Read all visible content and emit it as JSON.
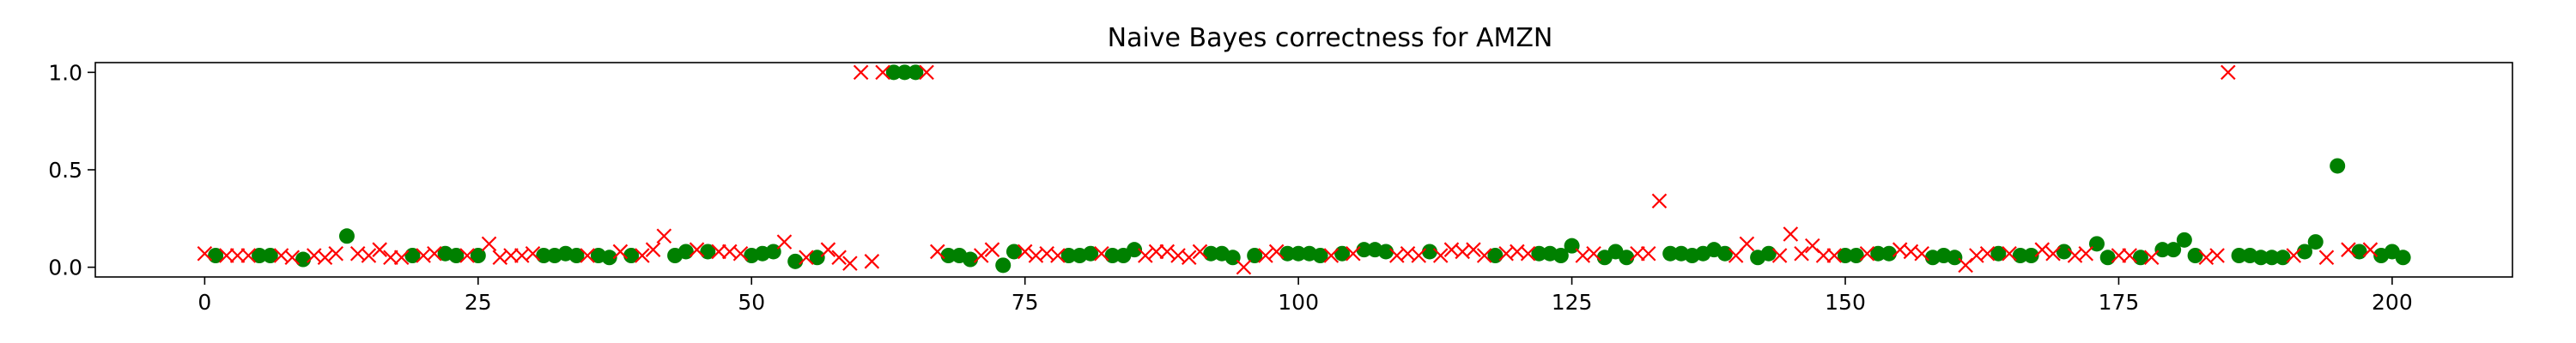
{
  "chart_data": {
    "type": "scatter",
    "title": "Naive Bayes correctness for AMZN",
    "xlabel": "",
    "ylabel": "",
    "xlim": [
      -10,
      211
    ],
    "ylim": [
      -0.05,
      1.05
    ],
    "xticks": [
      0,
      25,
      50,
      75,
      100,
      125,
      150,
      175,
      200
    ],
    "yticks": [
      0.0,
      0.5,
      1.0
    ],
    "ytick_labels": [
      "0.0",
      "0.5",
      "1.0"
    ],
    "grid": false,
    "legend": "none",
    "series": [
      {
        "marker": "circle",
        "color": "#008000",
        "points": [
          [
            1,
            0.06
          ],
          [
            5,
            0.06
          ],
          [
            6,
            0.06
          ],
          [
            9,
            0.04
          ],
          [
            13,
            0.16
          ],
          [
            19,
            0.06
          ],
          [
            22,
            0.07
          ],
          [
            23,
            0.06
          ],
          [
            25,
            0.06
          ],
          [
            31,
            0.06
          ],
          [
            32,
            0.06
          ],
          [
            33,
            0.07
          ],
          [
            34,
            0.06
          ],
          [
            36,
            0.06
          ],
          [
            37,
            0.05
          ],
          [
            39,
            0.06
          ],
          [
            43,
            0.06
          ],
          [
            44,
            0.08
          ],
          [
            46,
            0.08
          ],
          [
            50,
            0.06
          ],
          [
            51,
            0.07
          ],
          [
            52,
            0.08
          ],
          [
            54,
            0.03
          ],
          [
            56,
            0.05
          ],
          [
            63,
            1.0
          ],
          [
            64,
            1.0
          ],
          [
            65,
            1.0
          ],
          [
            68,
            0.06
          ],
          [
            69,
            0.06
          ],
          [
            70,
            0.04
          ],
          [
            73,
            0.01
          ],
          [
            74,
            0.08
          ],
          [
            79,
            0.06
          ],
          [
            80,
            0.06
          ],
          [
            81,
            0.07
          ],
          [
            83,
            0.06
          ],
          [
            84,
            0.06
          ],
          [
            85,
            0.09
          ],
          [
            92,
            0.07
          ],
          [
            93,
            0.07
          ],
          [
            94,
            0.05
          ],
          [
            96,
            0.06
          ],
          [
            99,
            0.07
          ],
          [
            100,
            0.07
          ],
          [
            101,
            0.07
          ],
          [
            102,
            0.06
          ],
          [
            104,
            0.07
          ],
          [
            106,
            0.09
          ],
          [
            107,
            0.09
          ],
          [
            108,
            0.08
          ],
          [
            112,
            0.08
          ],
          [
            118,
            0.06
          ],
          [
            122,
            0.07
          ],
          [
            123,
            0.07
          ],
          [
            124,
            0.06
          ],
          [
            125,
            0.11
          ],
          [
            128,
            0.05
          ],
          [
            129,
            0.08
          ],
          [
            130,
            0.05
          ],
          [
            134,
            0.07
          ],
          [
            135,
            0.07
          ],
          [
            136,
            0.06
          ],
          [
            137,
            0.07
          ],
          [
            138,
            0.09
          ],
          [
            139,
            0.07
          ],
          [
            142,
            0.05
          ],
          [
            143,
            0.07
          ],
          [
            150,
            0.06
          ],
          [
            151,
            0.06
          ],
          [
            153,
            0.07
          ],
          [
            154,
            0.07
          ],
          [
            158,
            0.05
          ],
          [
            159,
            0.06
          ],
          [
            160,
            0.05
          ],
          [
            164,
            0.07
          ],
          [
            166,
            0.06
          ],
          [
            167,
            0.06
          ],
          [
            170,
            0.08
          ],
          [
            173,
            0.12
          ],
          [
            174,
            0.05
          ],
          [
            177,
            0.05
          ],
          [
            179,
            0.09
          ],
          [
            180,
            0.09
          ],
          [
            181,
            0.14
          ],
          [
            182,
            0.06
          ],
          [
            186,
            0.06
          ],
          [
            187,
            0.06
          ],
          [
            188,
            0.05
          ],
          [
            189,
            0.05
          ],
          [
            190,
            0.05
          ],
          [
            192,
            0.08
          ],
          [
            193,
            0.13
          ],
          [
            195,
            0.52
          ],
          [
            197,
            0.08
          ],
          [
            199,
            0.06
          ],
          [
            200,
            0.08
          ],
          [
            201,
            0.05
          ]
        ]
      },
      {
        "marker": "x",
        "color": "#ff0000",
        "points": [
          [
            0,
            0.07
          ],
          [
            2,
            0.06
          ],
          [
            3,
            0.06
          ],
          [
            4,
            0.06
          ],
          [
            7,
            0.06
          ],
          [
            8,
            0.05
          ],
          [
            10,
            0.06
          ],
          [
            11,
            0.05
          ],
          [
            12,
            0.07
          ],
          [
            14,
            0.07
          ],
          [
            15,
            0.06
          ],
          [
            16,
            0.09
          ],
          [
            17,
            0.05
          ],
          [
            18,
            0.05
          ],
          [
            20,
            0.06
          ],
          [
            21,
            0.07
          ],
          [
            24,
            0.06
          ],
          [
            26,
            0.12
          ],
          [
            27,
            0.05
          ],
          [
            28,
            0.06
          ],
          [
            29,
            0.06
          ],
          [
            30,
            0.07
          ],
          [
            35,
            0.06
          ],
          [
            38,
            0.08
          ],
          [
            40,
            0.06
          ],
          [
            41,
            0.09
          ],
          [
            42,
            0.16
          ],
          [
            45,
            0.09
          ],
          [
            47,
            0.08
          ],
          [
            48,
            0.08
          ],
          [
            49,
            0.07
          ],
          [
            53,
            0.13
          ],
          [
            55,
            0.05
          ],
          [
            57,
            0.09
          ],
          [
            58,
            0.05
          ],
          [
            59,
            0.02
          ],
          [
            60,
            1.0
          ],
          [
            61,
            0.03
          ],
          [
            62,
            1.0
          ],
          [
            66,
            1.0
          ],
          [
            67,
            0.08
          ],
          [
            71,
            0.06
          ],
          [
            72,
            0.09
          ],
          [
            75,
            0.08
          ],
          [
            76,
            0.06
          ],
          [
            77,
            0.07
          ],
          [
            78,
            0.06
          ],
          [
            82,
            0.07
          ],
          [
            86,
            0.06
          ],
          [
            87,
            0.08
          ],
          [
            88,
            0.08
          ],
          [
            89,
            0.06
          ],
          [
            90,
            0.05
          ],
          [
            91,
            0.08
          ],
          [
            95,
            0.0
          ],
          [
            97,
            0.06
          ],
          [
            98,
            0.08
          ],
          [
            103,
            0.06
          ],
          [
            105,
            0.07
          ],
          [
            109,
            0.06
          ],
          [
            110,
            0.07
          ],
          [
            111,
            0.06
          ],
          [
            113,
            0.06
          ],
          [
            114,
            0.09
          ],
          [
            115,
            0.08
          ],
          [
            116,
            0.09
          ],
          [
            117,
            0.06
          ],
          [
            119,
            0.07
          ],
          [
            120,
            0.08
          ],
          [
            121,
            0.07
          ],
          [
            126,
            0.06
          ],
          [
            127,
            0.07
          ],
          [
            131,
            0.07
          ],
          [
            132,
            0.07
          ],
          [
            133,
            0.34
          ],
          [
            140,
            0.06
          ],
          [
            141,
            0.12
          ],
          [
            144,
            0.06
          ],
          [
            145,
            0.17
          ],
          [
            146,
            0.07
          ],
          [
            147,
            0.11
          ],
          [
            148,
            0.06
          ],
          [
            149,
            0.06
          ],
          [
            152,
            0.07
          ],
          [
            155,
            0.09
          ],
          [
            156,
            0.08
          ],
          [
            157,
            0.07
          ],
          [
            161,
            0.01
          ],
          [
            162,
            0.06
          ],
          [
            163,
            0.07
          ],
          [
            165,
            0.07
          ],
          [
            168,
            0.09
          ],
          [
            169,
            0.07
          ],
          [
            171,
            0.06
          ],
          [
            172,
            0.07
          ],
          [
            175,
            0.06
          ],
          [
            176,
            0.06
          ],
          [
            178,
            0.05
          ],
          [
            183,
            0.05
          ],
          [
            184,
            0.06
          ],
          [
            185,
            1.0
          ],
          [
            191,
            0.06
          ],
          [
            194,
            0.05
          ],
          [
            196,
            0.09
          ],
          [
            198,
            0.09
          ]
        ]
      }
    ]
  }
}
